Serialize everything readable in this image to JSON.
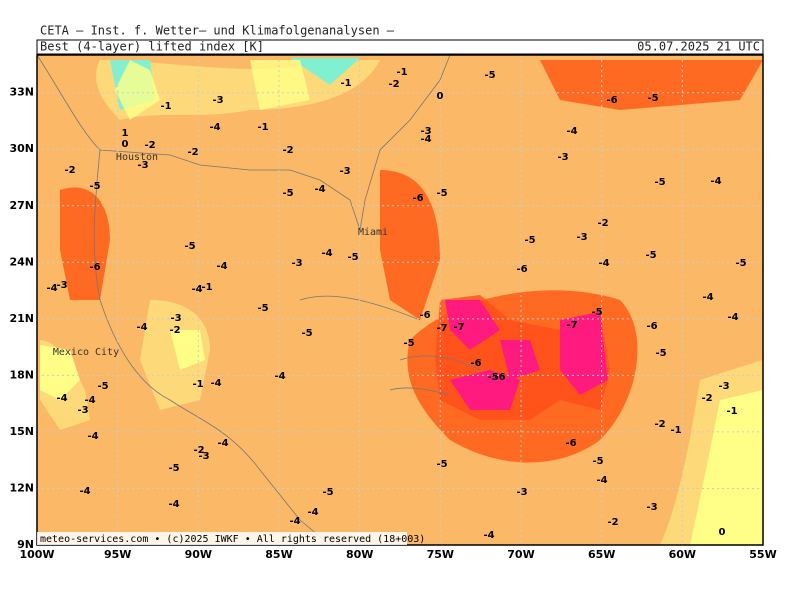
{
  "header": {
    "institute": "CETA — Inst. f. Wetter— und Klimafolgenanalysen —",
    "field": "Best (4-layer) lifted index [K]",
    "valid_time": "05.07.2025 21 UTC"
  },
  "map": {
    "lon_range": [
      -100,
      -55
    ],
    "lat_range": [
      9,
      35
    ],
    "lat_ticks": [
      {
        "value": 9,
        "label": "9N"
      },
      {
        "value": 12,
        "label": "12N"
      },
      {
        "value": 15,
        "label": "15N"
      },
      {
        "value": 18,
        "label": "18N"
      },
      {
        "value": 21,
        "label": "21N"
      },
      {
        "value": 24,
        "label": "24N"
      },
      {
        "value": 27,
        "label": "27N"
      },
      {
        "value": 30,
        "label": "30N"
      },
      {
        "value": 33,
        "label": "33N"
      }
    ],
    "lon_ticks": [
      {
        "value": -100,
        "label": "100W"
      },
      {
        "value": -95,
        "label": "95W"
      },
      {
        "value": -90,
        "label": "90W"
      },
      {
        "value": -85,
        "label": "85W"
      },
      {
        "value": -80,
        "label": "80W"
      },
      {
        "value": -75,
        "label": "75W"
      },
      {
        "value": -70,
        "label": "70W"
      },
      {
        "value": -65,
        "label": "65W"
      },
      {
        "value": -60,
        "label": "60W"
      },
      {
        "value": -55,
        "label": "55W"
      }
    ],
    "cities": [
      "Houston",
      "Miami",
      "Mexico City"
    ],
    "contour_labels": [
      -3,
      -1,
      1,
      0,
      -2,
      -3,
      -5,
      -2,
      -2,
      -4,
      -1,
      -2,
      -1,
      -2,
      -1,
      0,
      -5,
      -3,
      -4,
      -3,
      -4,
      -5,
      -5,
      -6,
      -4,
      -3,
      -4,
      -5,
      -5,
      -6,
      -5,
      -6,
      -4,
      -3,
      -6,
      -5,
      -5,
      -4,
      -3,
      -2,
      -4,
      -5,
      -5,
      -4,
      -4,
      -6,
      -5,
      -5,
      -7,
      -6,
      -7,
      -7,
      -5,
      -6,
      -5,
      -6,
      -3,
      -2,
      -1,
      -2,
      -1,
      -6,
      -5,
      -4,
      -3,
      -5,
      -5,
      -5,
      -5,
      -4,
      -1,
      -4,
      -3,
      -2,
      -4,
      -4,
      -1,
      -3,
      -4,
      -5,
      -4,
      -3,
      -4,
      -4,
      -2,
      -3,
      -4,
      -5,
      -4,
      -4,
      -4,
      -4,
      -2,
      -3,
      0,
      -4
    ]
  },
  "footer": "meteo-services.com • (c)2025 IWKF • All rights reserved (18+003)"
}
